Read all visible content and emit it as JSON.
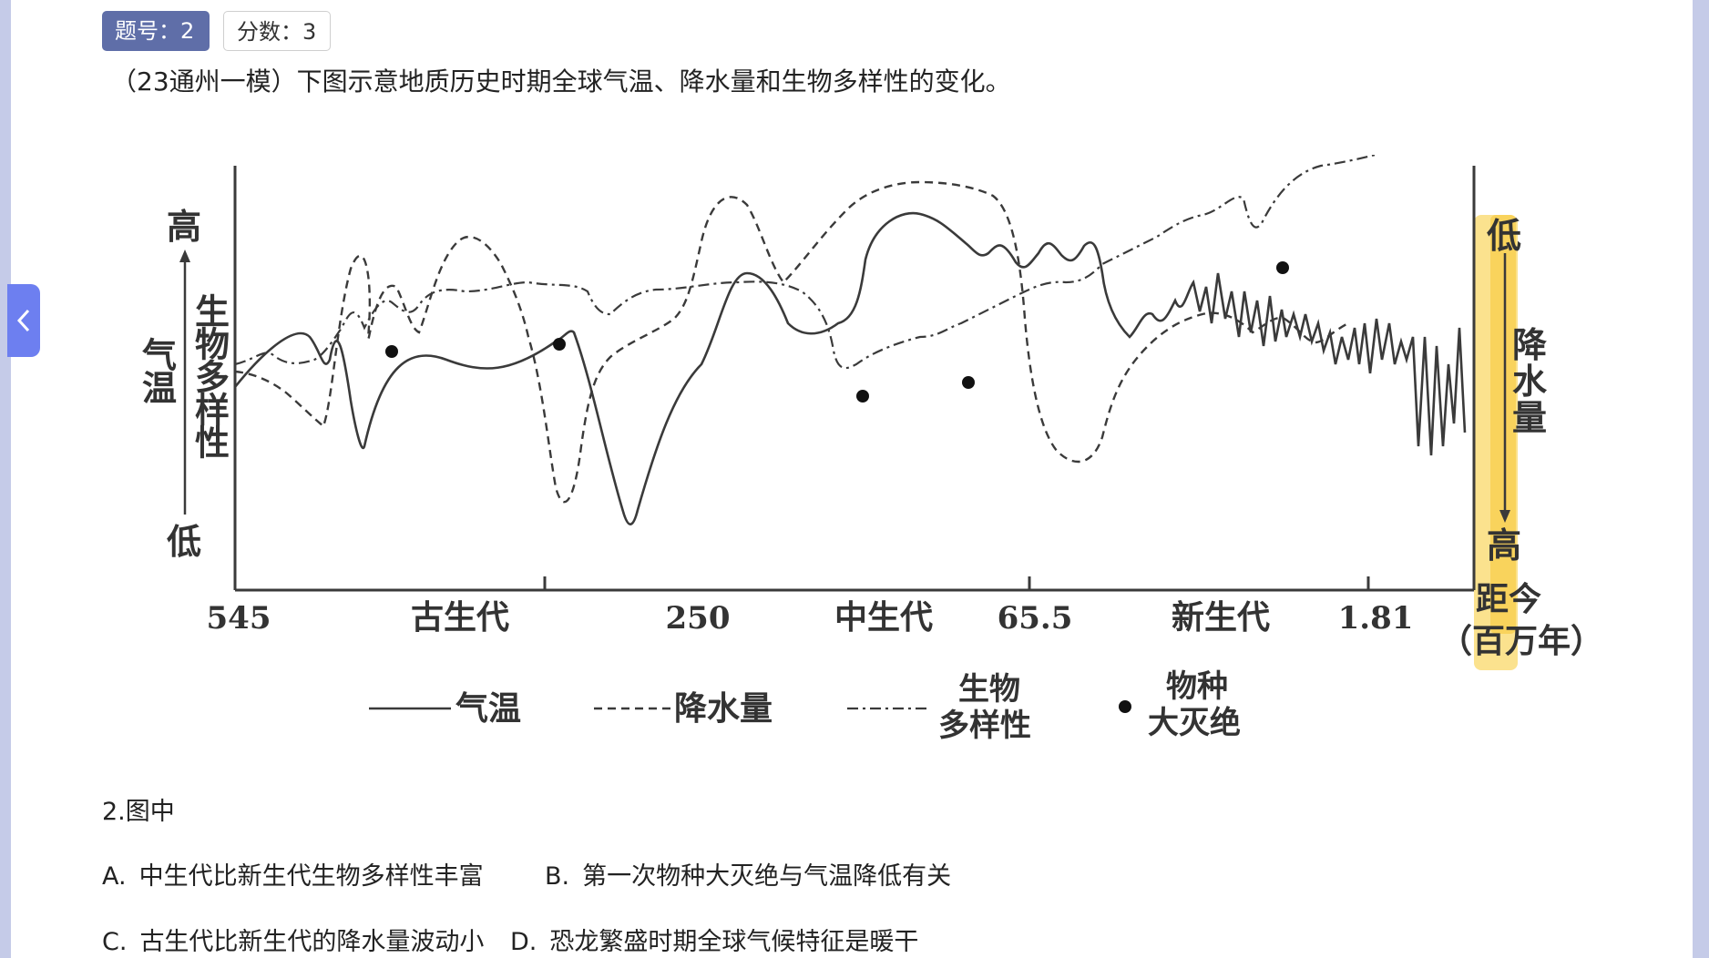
{
  "header": {
    "question_number": "题号：2",
    "score": "分数：3"
  },
  "question": {
    "stem": "（23通州一模）下图示意地质历史时期全球气温、降水量和生物多样性的变化。",
    "sub_question": "2.图中",
    "options": [
      {
        "letter": "A.",
        "text": "中生代比新生代生物多样性丰富"
      },
      {
        "letter": "B.",
        "text": "第一次物种大灭绝与气温降低有关"
      },
      {
        "letter": "C.",
        "text": "古生代比新生代的降水量波动小"
      },
      {
        "letter": "D.",
        "text": "恐龙繁盛时期全球气候特征是暖干"
      }
    ]
  },
  "chart_data": {
    "type": "line",
    "left_axis": {
      "label": "气温 生物多样性",
      "top": "高",
      "bottom": "低",
      "label_temp": "气温",
      "label_bio": "生物多样性"
    },
    "right_axis": {
      "label": "降水量",
      "top": "低",
      "bottom": "高",
      "label_chars": [
        "降",
        "水",
        "量"
      ]
    },
    "x_tick_labels": [
      "545",
      "古生代",
      "250",
      "中生代",
      "65.5",
      "新生代",
      "1.81"
    ],
    "x_axis_label": "距今",
    "x_axis_unit": "（百万年）",
    "legend": [
      {
        "name": "气温",
        "style": "solid"
      },
      {
        "name": "降水量",
        "style": "dashed"
      },
      {
        "name": "生物多样性",
        "style": "dash-dot",
        "lines": [
          "生物",
          "多样性"
        ]
      },
      {
        "name": "物种大灭绝",
        "style": "dot",
        "lines": [
          "物种",
          "大灭绝"
        ]
      }
    ],
    "highlight_color": "#f7c51e",
    "ink_color": "#3a3a3a"
  }
}
